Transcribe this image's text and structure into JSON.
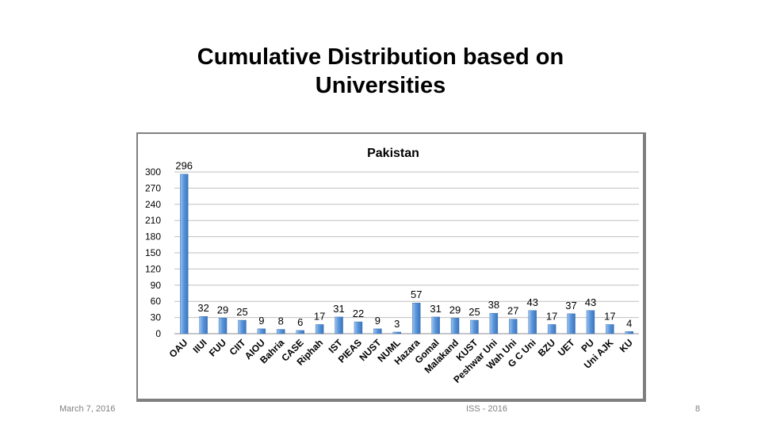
{
  "slide": {
    "title_line1": "Cumulative Distribution based on",
    "title_line2": "Universities",
    "footer_date": "March 7, 2016",
    "footer_center": "ISS - 2016",
    "page_number": "8"
  },
  "chart_data": {
    "type": "bar",
    "title": "Pakistan",
    "xlabel": "",
    "ylabel": "",
    "ylim": [
      0,
      300
    ],
    "yticks": [
      0,
      30,
      60,
      90,
      120,
      150,
      180,
      210,
      240,
      270,
      300
    ],
    "grid": true,
    "legend": "none",
    "bar_color": "#4f8fd6",
    "categories": [
      "OAU",
      "IIUI",
      "FUU",
      "CIIT",
      "AIOU",
      "Bahria",
      "CASE",
      "Riphah",
      "IST",
      "PIEAS",
      "NUST",
      "NUML",
      "Hazara",
      "Gomal",
      "Malakand",
      "KUST",
      "Peshwar Uni",
      "Wah Uni",
      "G C Uni",
      "BZU",
      "UET",
      "PU",
      "Uni AJK",
      "KU"
    ],
    "values": [
      296,
      32,
      29,
      25,
      9,
      8,
      6,
      17,
      31,
      22,
      9,
      3,
      57,
      31,
      29,
      25,
      38,
      27,
      43,
      17,
      37,
      43,
      17,
      4
    ]
  }
}
